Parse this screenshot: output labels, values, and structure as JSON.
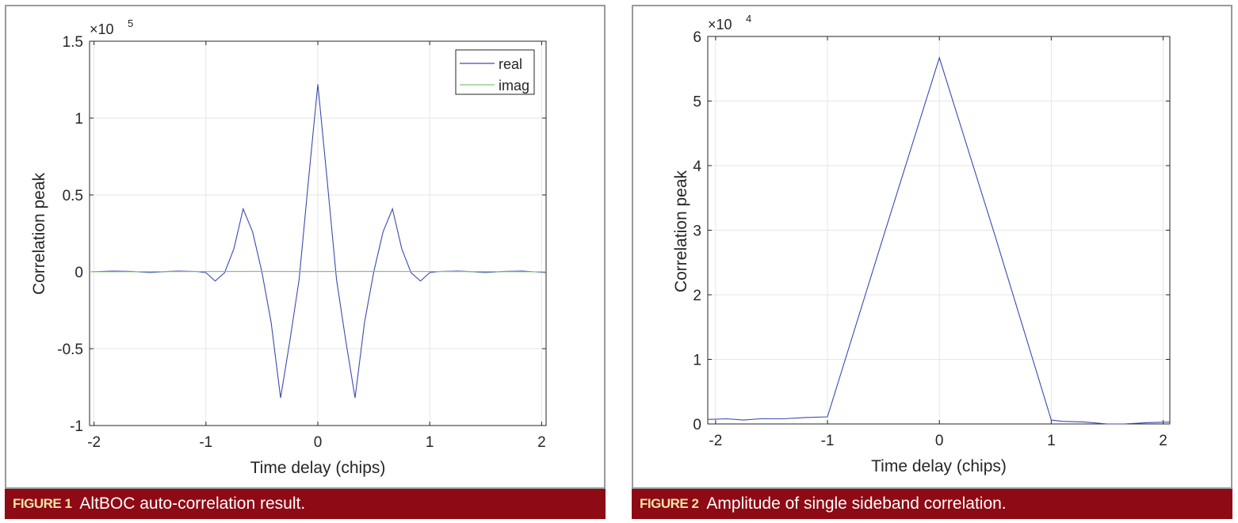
{
  "figures": [
    {
      "label": "FIGURE 1",
      "caption": "AltBOC auto-correlation result."
    },
    {
      "label": "FIGURE 2",
      "caption": "Amplitude of single sideband correlation."
    }
  ],
  "chart_data": [
    {
      "type": "line",
      "xlabel": "Time delay (chips)",
      "ylabel": "Correlation peak",
      "y_exponent": "×10",
      "y_exponent_power": "5",
      "xlim": [
        -2.04,
        2.04
      ],
      "ylim": [
        -1,
        1.5
      ],
      "xticks": [
        -2,
        -1,
        0,
        1,
        2
      ],
      "xtick_labels": [
        "-2",
        "-1",
        "0",
        "1",
        "2"
      ],
      "yticks": [
        -1,
        -0.5,
        0,
        0.5,
        1,
        1.5
      ],
      "ytick_labels": [
        "-1",
        "-0.5",
        "0",
        "0.5",
        "1",
        "1.5"
      ],
      "grid": true,
      "legend": "top-right",
      "series": [
        {
          "name": "real",
          "color": "#3b4bb0",
          "x": [
            -2.04,
            -1.83,
            -1.67,
            -1.5,
            -1.33,
            -1.25,
            -1.08,
            -1,
            -0.917,
            -0.833,
            -0.75,
            -0.667,
            -0.583,
            -0.5,
            -0.417,
            -0.333,
            -0.25,
            -0.167,
            -0.083,
            0,
            0.083,
            0.167,
            0.25,
            0.333,
            0.417,
            0.5,
            0.583,
            0.667,
            0.75,
            0.833,
            0.917,
            1,
            1.08,
            1.25,
            1.33,
            1.5,
            1.67,
            1.83,
            2.04
          ],
          "y": [
            0,
            0.005,
            0.003,
            -0.005,
            0.003,
            0.005,
            0.002,
            -0.005,
            -0.06,
            -0.005,
            0.15,
            0.41,
            0.26,
            0.0,
            -0.33,
            -0.82,
            -0.45,
            -0.05,
            0.6,
            1.22,
            0.6,
            -0.05,
            -0.45,
            -0.82,
            -0.33,
            0.0,
            0.26,
            0.41,
            0.15,
            -0.005,
            -0.06,
            -0.005,
            0.002,
            0.005,
            0.003,
            -0.005,
            0.003,
            0.005,
            -0.005
          ]
        },
        {
          "name": "imag",
          "color": "#7dc96b",
          "x": [
            -2.04,
            -1,
            -0.5,
            0,
            0.5,
            1,
            2.04
          ],
          "y": [
            0,
            0.002,
            0.003,
            0.002,
            0.003,
            0.002,
            0
          ]
        }
      ]
    },
    {
      "type": "line",
      "xlabel": "Time delay (chips)",
      "ylabel": "Correlation peak",
      "y_exponent": "×10",
      "y_exponent_power": "4",
      "xlim": [
        -2.07,
        2.06
      ],
      "ylim": [
        0,
        6
      ],
      "xticks": [
        -2,
        -1,
        0,
        1,
        2
      ],
      "xtick_labels": [
        "-2",
        "-1",
        "0",
        "1",
        "2"
      ],
      "yticks": [
        0,
        1,
        2,
        3,
        4,
        5,
        6
      ],
      "ytick_labels": [
        "0",
        "1",
        "2",
        "3",
        "4",
        "5",
        "6"
      ],
      "grid": true,
      "series": [
        {
          "color": "#3b4bb0",
          "x": [
            -2.07,
            -1.9,
            -1.75,
            -1.6,
            -1.4,
            -1.2,
            -1,
            -0.5,
            0,
            0.5,
            1,
            1.1,
            1.3,
            1.5,
            1.65,
            1.85,
            2.06
          ],
          "y": [
            0.07,
            0.08,
            0.06,
            0.08,
            0.08,
            0.1,
            0.11,
            2.9,
            5.67,
            2.9,
            0.06,
            0.04,
            0.03,
            0.0,
            0.0,
            0.02,
            0.03
          ]
        }
      ]
    }
  ]
}
